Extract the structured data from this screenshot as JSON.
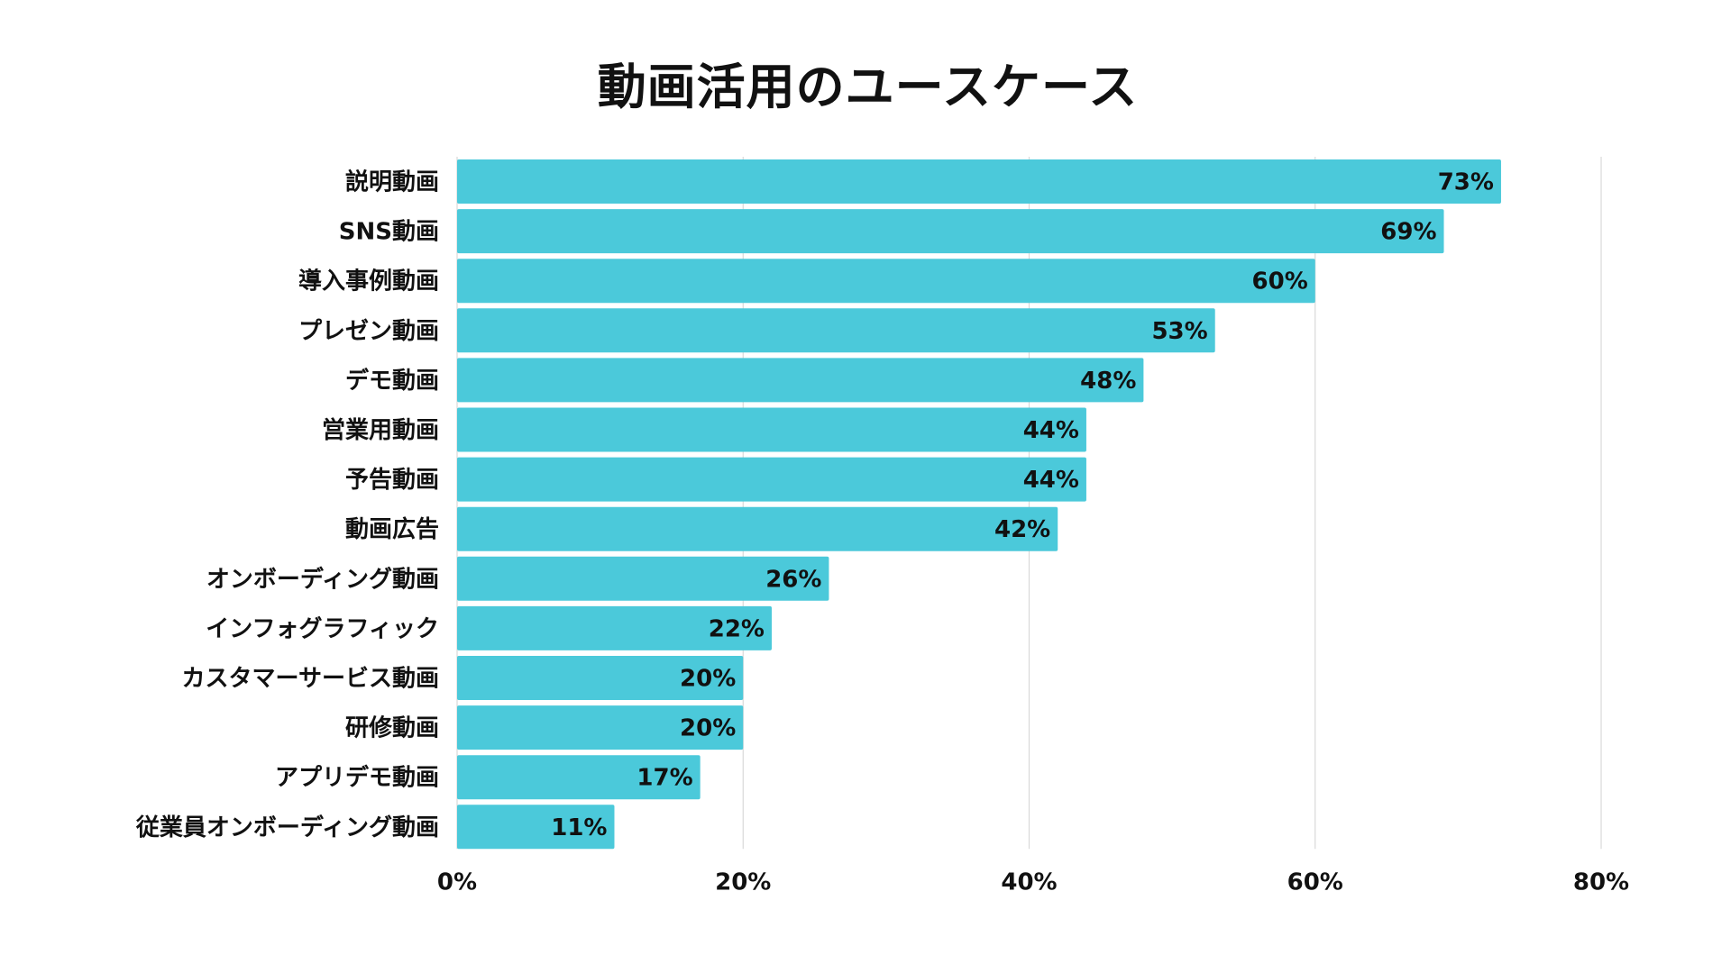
{
  "chart_data": {
    "type": "bar",
    "orientation": "horizontal",
    "title": "動画活用のユースケース",
    "categories": [
      "説明動画",
      "SNS動画",
      "導入事例動画",
      "プレゼン動画",
      "デモ動画",
      "営業用動画",
      "予告動画",
      "動画広告",
      "オンボーディング動画",
      "インフォグラフィック",
      "カスタマーサービス動画",
      "研修動画",
      "アプリデモ動画",
      "従業員オンボーディング動画"
    ],
    "values": [
      73,
      69,
      60,
      53,
      48,
      44,
      44,
      42,
      26,
      22,
      20,
      20,
      17,
      11
    ],
    "data_labels": [
      "73%",
      "69%",
      "60%",
      "53%",
      "48%",
      "44%",
      "44%",
      "42%",
      "26%",
      "22%",
      "20%",
      "20%",
      "17%",
      "11%"
    ],
    "xlim": [
      0,
      80
    ],
    "x_ticks": [
      "0%",
      "20%",
      "40%",
      "60%",
      "80%"
    ],
    "grid": "vertical",
    "xlabel": "",
    "ylabel": "",
    "bar_color": "#4BC9DA"
  }
}
